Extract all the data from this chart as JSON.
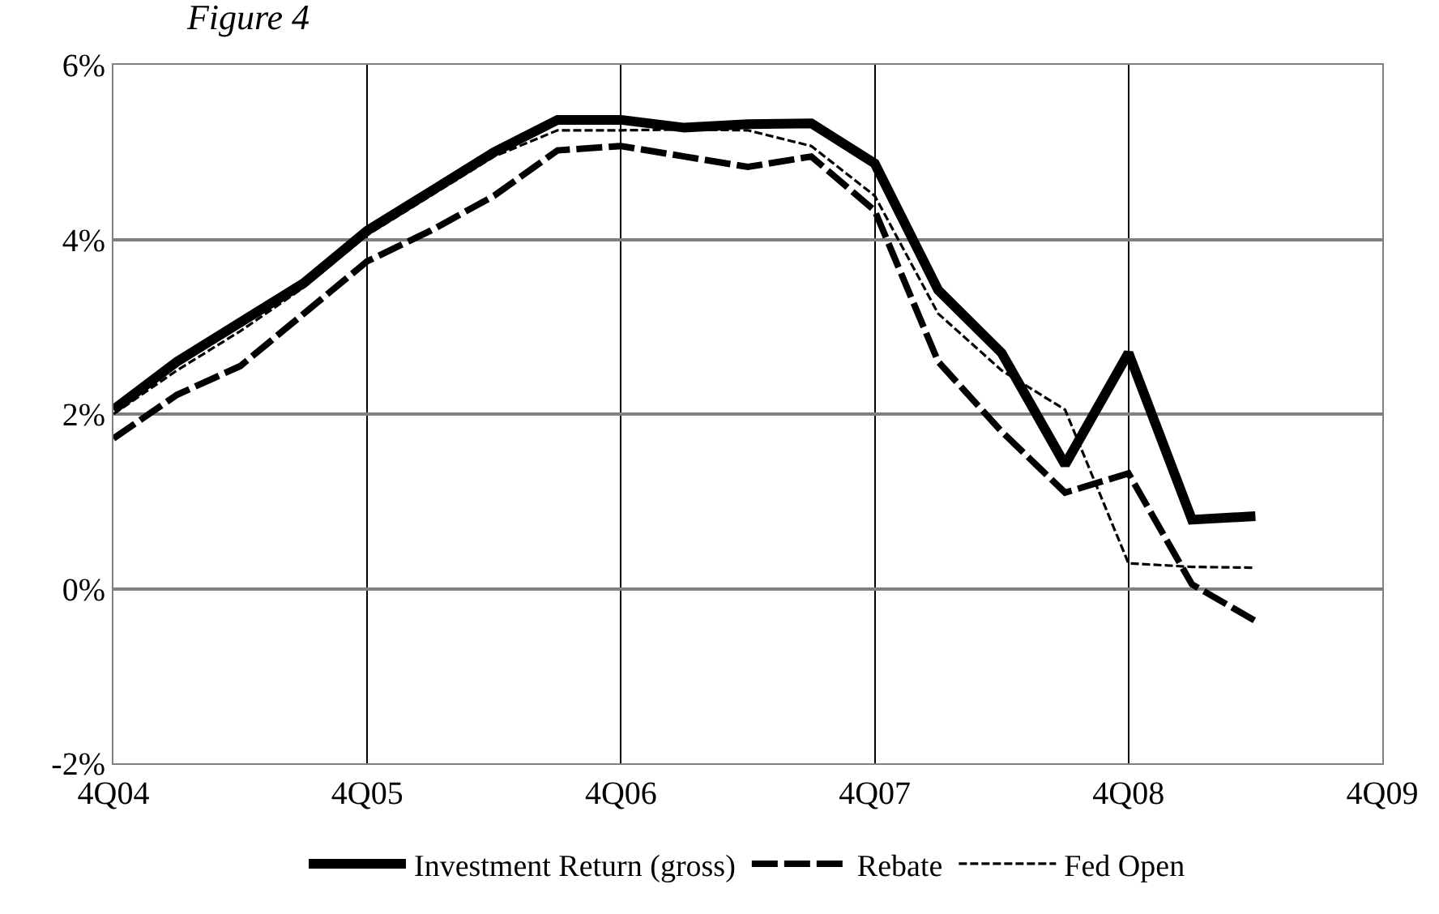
{
  "chart_data": {
    "type": "line",
    "title": "Figure 4",
    "categories": [
      "4Q04",
      null,
      null,
      null,
      "4Q05",
      null,
      null,
      null,
      "4Q06",
      null,
      null,
      null,
      "4Q07",
      null,
      null,
      null,
      "4Q08",
      null,
      null,
      null,
      "4Q09"
    ],
    "ylim": [
      -2,
      6
    ],
    "yticks": [
      {
        "value": -2,
        "label": "-2%"
      },
      {
        "value": 0,
        "label": "0%"
      },
      {
        "value": 2,
        "label": "2%"
      },
      {
        "value": 4,
        "label": "4%"
      },
      {
        "value": 6,
        "label": "6%"
      }
    ],
    "grid": true,
    "legend": "bottom",
    "marker": "none",
    "series": [
      {
        "name": "Investment Return (gross)",
        "color": "#000000",
        "line_style": "solid",
        "values": [
          2.05,
          2.6,
          3.05,
          3.5,
          4.1,
          4.55,
          5.0,
          5.37,
          5.37,
          5.28,
          5.32,
          5.33,
          4.87,
          3.42,
          2.7,
          1.42,
          2.7,
          0.79,
          0.83,
          null,
          null
        ]
      },
      {
        "name": "Rebate",
        "color": "#000000",
        "line_style": "dashed",
        "values": [
          1.72,
          2.22,
          2.55,
          3.15,
          3.75,
          4.1,
          4.5,
          5.02,
          5.07,
          4.95,
          4.83,
          4.95,
          4.33,
          2.6,
          1.8,
          1.1,
          1.32,
          0.05,
          -0.37,
          null,
          null
        ]
      },
      {
        "name": "Fed Open",
        "color": "#000000",
        "line_style": "dotted",
        "values": [
          2.0,
          2.5,
          2.95,
          3.45,
          4.05,
          4.5,
          4.95,
          5.25,
          5.25,
          5.26,
          5.25,
          5.07,
          4.5,
          3.15,
          2.5,
          2.05,
          0.29,
          0.25,
          0.24,
          null,
          null
        ]
      }
    ]
  }
}
